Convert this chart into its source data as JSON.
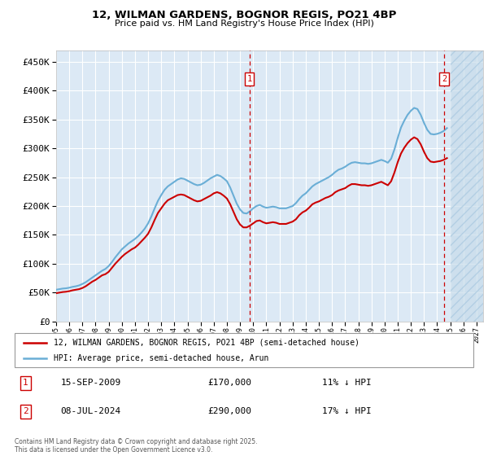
{
  "title_line1": "12, WILMAN GARDENS, BOGNOR REGIS, PO21 4BP",
  "title_line2": "Price paid vs. HM Land Registry's House Price Index (HPI)",
  "background_color": "#dce9f5",
  "plot_bg_color": "#dce9f5",
  "grid_color": "#ffffff",
  "hpi_color": "#6aaed6",
  "price_color": "#cc0000",
  "ylim": [
    0,
    470000
  ],
  "yticks": [
    0,
    50000,
    100000,
    150000,
    200000,
    250000,
    300000,
    350000,
    400000,
    450000
  ],
  "xlim_start": 1995.0,
  "xlim_end": 2027.5,
  "future_start": 2025.0,
  "transaction1_x": 2009.71,
  "transaction1_y": 170000,
  "transaction2_x": 2024.53,
  "transaction2_y": 290000,
  "legend_line1": "12, WILMAN GARDENS, BOGNOR REGIS, PO21 4BP (semi-detached house)",
  "legend_line2": "HPI: Average price, semi-detached house, Arun",
  "annotation1_date": "15-SEP-2009",
  "annotation1_price": "£170,000",
  "annotation1_hpi": "11% ↓ HPI",
  "annotation2_date": "08-JUL-2024",
  "annotation2_price": "£290,000",
  "annotation2_hpi": "17% ↓ HPI",
  "footer": "Contains HM Land Registry data © Crown copyright and database right 2025.\nThis data is licensed under the Open Government Licence v3.0.",
  "hpi_data_x": [
    1995.0,
    1995.25,
    1995.5,
    1995.75,
    1996.0,
    1996.25,
    1996.5,
    1996.75,
    1997.0,
    1997.25,
    1997.5,
    1997.75,
    1998.0,
    1998.25,
    1998.5,
    1998.75,
    1999.0,
    1999.25,
    1999.5,
    1999.75,
    2000.0,
    2000.25,
    2000.5,
    2000.75,
    2001.0,
    2001.25,
    2001.5,
    2001.75,
    2002.0,
    2002.25,
    2002.5,
    2002.75,
    2003.0,
    2003.25,
    2003.5,
    2003.75,
    2004.0,
    2004.25,
    2004.5,
    2004.75,
    2005.0,
    2005.25,
    2005.5,
    2005.75,
    2006.0,
    2006.25,
    2006.5,
    2006.75,
    2007.0,
    2007.25,
    2007.5,
    2007.75,
    2008.0,
    2008.25,
    2008.5,
    2008.75,
    2009.0,
    2009.25,
    2009.5,
    2009.75,
    2010.0,
    2010.25,
    2010.5,
    2010.75,
    2011.0,
    2011.25,
    2011.5,
    2011.75,
    2012.0,
    2012.25,
    2012.5,
    2012.75,
    2013.0,
    2013.25,
    2013.5,
    2013.75,
    2014.0,
    2014.25,
    2014.5,
    2014.75,
    2015.0,
    2015.25,
    2015.5,
    2015.75,
    2016.0,
    2016.25,
    2016.5,
    2016.75,
    2017.0,
    2017.25,
    2017.5,
    2017.75,
    2018.0,
    2018.25,
    2018.5,
    2018.75,
    2019.0,
    2019.25,
    2019.5,
    2019.75,
    2020.0,
    2020.25,
    2020.5,
    2020.75,
    2021.0,
    2021.25,
    2021.5,
    2021.75,
    2022.0,
    2022.25,
    2022.5,
    2022.75,
    2023.0,
    2023.25,
    2023.5,
    2023.75,
    2024.0,
    2024.25,
    2024.5,
    2024.75
  ],
  "hpi_data_y": [
    55000,
    56000,
    57000,
    57500,
    58500,
    60000,
    61000,
    62500,
    65000,
    68000,
    72000,
    76000,
    80000,
    84000,
    88000,
    91000,
    96000,
    103000,
    111000,
    118000,
    125000,
    130000,
    135000,
    139000,
    143000,
    148000,
    154000,
    161000,
    170000,
    182000,
    196000,
    209000,
    219000,
    228000,
    234000,
    238000,
    242000,
    246000,
    248000,
    247000,
    244000,
    241000,
    238000,
    236000,
    237000,
    240000,
    244000,
    248000,
    251000,
    254000,
    252000,
    248000,
    243000,
    232000,
    218000,
    204000,
    194000,
    188000,
    187000,
    191000,
    196000,
    200000,
    202000,
    199000,
    197000,
    198000,
    199000,
    198000,
    196000,
    196000,
    196000,
    198000,
    200000,
    205000,
    212000,
    218000,
    222000,
    228000,
    234000,
    238000,
    241000,
    244000,
    247000,
    250000,
    254000,
    259000,
    263000,
    265000,
    268000,
    272000,
    275000,
    276000,
    275000,
    274000,
    274000,
    273000,
    274000,
    276000,
    278000,
    280000,
    278000,
    275000,
    282000,
    298000,
    318000,
    336000,
    348000,
    358000,
    365000,
    370000,
    368000,
    358000,
    344000,
    332000,
    325000,
    324000,
    325000,
    327000,
    330000,
    335000
  ],
  "price_data_x": [
    1995.0,
    1995.25,
    1995.5,
    1995.75,
    1996.0,
    1996.25,
    1996.5,
    1996.75,
    1997.0,
    1997.25,
    1997.5,
    1997.75,
    1998.0,
    1998.25,
    1998.5,
    1998.75,
    1999.0,
    1999.25,
    1999.5,
    1999.75,
    2000.0,
    2000.25,
    2000.5,
    2000.75,
    2001.0,
    2001.25,
    2001.5,
    2001.75,
    2002.0,
    2002.25,
    2002.5,
    2002.75,
    2003.0,
    2003.25,
    2003.5,
    2003.75,
    2004.0,
    2004.25,
    2004.5,
    2004.75,
    2005.0,
    2005.25,
    2005.5,
    2005.75,
    2006.0,
    2006.25,
    2006.5,
    2006.75,
    2007.0,
    2007.25,
    2007.5,
    2007.75,
    2008.0,
    2008.25,
    2008.5,
    2008.75,
    2009.0,
    2009.25,
    2009.5,
    2009.75,
    2010.0,
    2010.25,
    2010.5,
    2010.75,
    2011.0,
    2011.25,
    2011.5,
    2011.75,
    2012.0,
    2012.25,
    2012.5,
    2012.75,
    2013.0,
    2013.25,
    2013.5,
    2013.75,
    2014.0,
    2014.25,
    2014.5,
    2014.75,
    2015.0,
    2015.25,
    2015.5,
    2015.75,
    2016.0,
    2016.25,
    2016.5,
    2016.75,
    2017.0,
    2017.25,
    2017.5,
    2017.75,
    2018.0,
    2018.25,
    2018.5,
    2018.75,
    2019.0,
    2019.25,
    2019.5,
    2019.75,
    2020.0,
    2020.25,
    2020.5,
    2020.75,
    2021.0,
    2021.25,
    2021.5,
    2021.75,
    2022.0,
    2022.25,
    2022.5,
    2022.75,
    2023.0,
    2023.25,
    2023.5,
    2023.75,
    2024.0,
    2024.25,
    2024.5,
    2024.75
  ],
  "price_data_y": [
    49000,
    50000,
    51000,
    51500,
    52500,
    54000,
    55000,
    56000,
    58000,
    61000,
    65000,
    69000,
    72000,
    76000,
    80000,
    82000,
    86000,
    93000,
    100000,
    106000,
    112000,
    117000,
    121000,
    125000,
    128000,
    133000,
    139000,
    145000,
    152000,
    163000,
    176000,
    188000,
    196000,
    204000,
    210000,
    213000,
    216000,
    219000,
    220000,
    219000,
    216000,
    213000,
    210000,
    208000,
    209000,
    212000,
    215000,
    218000,
    222000,
    224000,
    222000,
    218000,
    213000,
    203000,
    190000,
    177000,
    168000,
    163000,
    163000,
    166000,
    170000,
    174000,
    175000,
    172000,
    170000,
    171000,
    172000,
    171000,
    169000,
    169000,
    169000,
    171000,
    173000,
    177000,
    184000,
    189000,
    192000,
    197000,
    203000,
    206000,
    208000,
    211000,
    214000,
    216000,
    219000,
    224000,
    227000,
    229000,
    231000,
    235000,
    238000,
    238000,
    237000,
    236000,
    236000,
    235000,
    236000,
    238000,
    240000,
    242000,
    239000,
    236000,
    243000,
    258000,
    276000,
    291000,
    301000,
    309000,
    315000,
    319000,
    316000,
    307000,
    294000,
    283000,
    277000,
    276000,
    277000,
    278000,
    280000,
    283000
  ]
}
